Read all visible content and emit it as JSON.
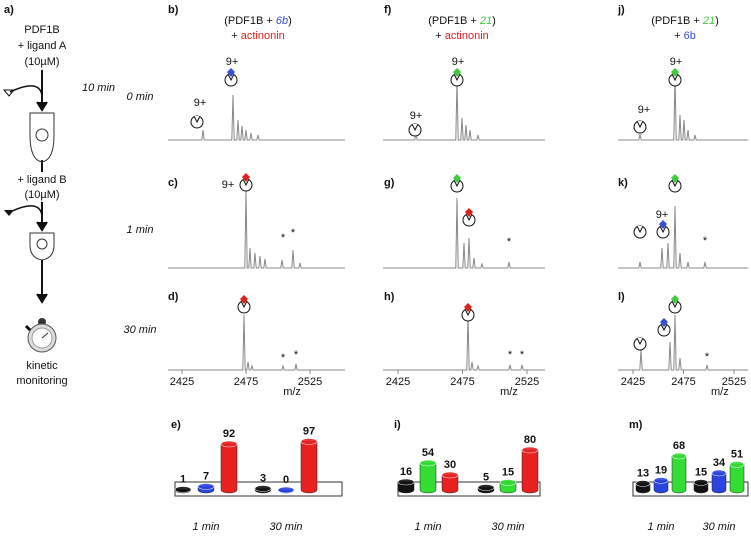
{
  "scheme": {
    "label": "a)",
    "protein": "PDF1B",
    "ligand_a": "+ ligand A",
    "conc_a": "(10µM)",
    "time": "10 min",
    "ligand_b": "+ ligand B",
    "conc_b": "(10µM)",
    "readout": [
      "kinetic",
      "monitoring"
    ]
  },
  "times": [
    "0 min",
    "1 min",
    "30 min"
  ],
  "columns": [
    {
      "panels": [
        "b)",
        "c)",
        "d)"
      ],
      "open": "(PDF1B + ",
      "ligand": "6b",
      "ligand_color": "#3a4fd8",
      "close": ")",
      "plus": "+ ",
      "second": "actinonin",
      "second_color": "#e02020"
    },
    {
      "panels": [
        "f)",
        "g)",
        "h)"
      ],
      "open": "(PDF1B + ",
      "ligand": "21",
      "ligand_color": "#3ccc3c",
      "close": ")",
      "plus": "+ ",
      "second": "actinonin",
      "second_color": "#e02020"
    },
    {
      "panels": [
        "j)",
        "k)",
        "l)"
      ],
      "open": "(PDF1B + ",
      "ligand": "21",
      "ligand_color": "#3ccc3c",
      "close": ")",
      "plus": "+ ",
      "second": "6b",
      "second_color": "#3a4fd8"
    }
  ],
  "charge": "9+",
  "star": "*",
  "xticks": [
    2425,
    2475,
    2525
  ],
  "xlabel": "m/z",
  "chart_data": [
    {
      "type": "bar",
      "label": "e)",
      "categories": [
        "1 min",
        "30 min"
      ],
      "ylim": [
        0,
        100
      ],
      "series": [
        {
          "color": "#111111",
          "values": [
            1,
            3
          ]
        },
        {
          "color": "#2a44e0",
          "values": [
            7,
            0
          ]
        },
        {
          "color": "#e82020",
          "values": [
            92,
            97
          ]
        }
      ]
    },
    {
      "type": "bar",
      "label": "i)",
      "categories": [
        "1 min",
        "30 min"
      ],
      "ylim": [
        0,
        100
      ],
      "series": [
        {
          "color": "#111111",
          "values": [
            16,
            5
          ]
        },
        {
          "color": "#33dd33",
          "values": [
            54,
            15
          ]
        },
        {
          "color": "#e82020",
          "values": [
            30,
            80
          ]
        }
      ]
    },
    {
      "type": "bar",
      "label": "m)",
      "categories": [
        "1 min",
        "30 min"
      ],
      "ylim": [
        0,
        100
      ],
      "series": [
        {
          "color": "#111111",
          "values": [
            13,
            15
          ]
        },
        {
          "color": "#2a44e0",
          "values": [
            19,
            34
          ]
        },
        {
          "color": "#33dd33",
          "values": [
            68,
            51
          ]
        }
      ]
    }
  ]
}
